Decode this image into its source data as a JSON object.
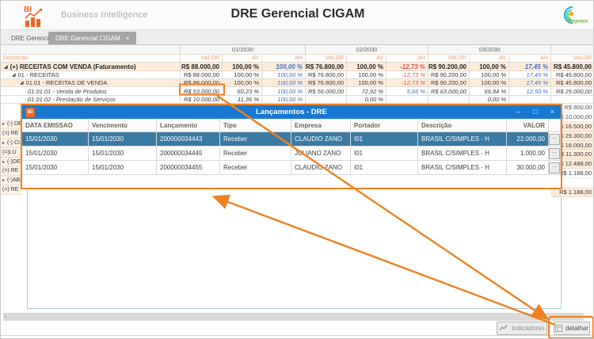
{
  "header": {
    "logo_text": "BI",
    "app_label": "Business Intelligence",
    "title": "DRE Gerencial CIGAM",
    "brand_text": "Empresa"
  },
  "tabs": [
    {
      "label": "DRE Gerencial",
      "active": false
    },
    {
      "label": "DRE Gerencial CIGAM",
      "active": true,
      "close_glyph": "×"
    }
  ],
  "grid": {
    "description_header": "Descricao",
    "month_groups": [
      {
        "label": "01/2030",
        "span": 3
      },
      {
        "label": "02/2030",
        "span": 3
      },
      {
        "label": "03/2030",
        "span": 3
      },
      {
        "label": "",
        "span": 1
      }
    ],
    "value_headers": [
      "VALOR",
      "AV",
      "AH",
      "VALOR",
      "AV",
      "AH",
      "VALOR",
      "AV",
      "AH",
      "VALOR"
    ],
    "rows": [
      {
        "desc": "(+) RECEITAS COM VENDA (Faturamento)",
        "level": 0,
        "arrow": true,
        "peach": true,
        "bold": true,
        "italic": false,
        "cells": [
          [
            "R$ 88.000,00",
            ""
          ],
          [
            "100,00 %",
            ""
          ],
          [
            "100,00 %",
            "b"
          ],
          [
            "R$ 76.800,00",
            ""
          ],
          [
            "100,00 %",
            ""
          ],
          [
            "-12,73 %",
            "r"
          ],
          [
            "R$ 90.200,00",
            ""
          ],
          [
            "100,00 %",
            ""
          ],
          [
            "17,45 %",
            "b"
          ],
          [
            "R$ 45.800,00",
            ""
          ]
        ]
      },
      {
        "desc": "01 - RECEITAS",
        "level": 1,
        "arrow": true,
        "peach": false,
        "bold": false,
        "italic": false,
        "cells": [
          [
            "R$ 88.000,00",
            ""
          ],
          [
            "100,00 %",
            ""
          ],
          [
            "100,00 %",
            "b"
          ],
          [
            "R$ 76.800,00",
            ""
          ],
          [
            "100,00 %",
            ""
          ],
          [
            "-12,73 %",
            "r"
          ],
          [
            "R$ 90.200,00",
            ""
          ],
          [
            "100,00 %",
            ""
          ],
          [
            "17,45 %",
            "b"
          ],
          [
            "R$ 45.800,00",
            ""
          ]
        ]
      },
      {
        "desc": "01.01 - RECEITAS DE VENDA",
        "level": 2,
        "arrow": true,
        "peach": true,
        "bold": false,
        "italic": false,
        "cells": [
          [
            "R$ 88.000,00",
            ""
          ],
          [
            "100,00 %",
            ""
          ],
          [
            "100,00 %",
            "b"
          ],
          [
            "R$ 76.800,00",
            ""
          ],
          [
            "100,00 %",
            ""
          ],
          [
            "-12,73 %",
            "r"
          ],
          [
            "R$ 90.200,00",
            ""
          ],
          [
            "100,00 %",
            ""
          ],
          [
            "17,45 %",
            "b"
          ],
          [
            "R$ 45.800,00",
            ""
          ]
        ]
      },
      {
        "desc": "01.01.01 - Venda de Produtos",
        "level": 3,
        "arrow": false,
        "peach": false,
        "bold": false,
        "italic": true,
        "cells": [
          [
            "R$ 53.000,00",
            "hl"
          ],
          [
            "60,23 %",
            ""
          ],
          [
            "100,00 %",
            "b"
          ],
          [
            "R$ 56.000,00",
            ""
          ],
          [
            "72,92 %",
            ""
          ],
          [
            "5,66 %",
            "b"
          ],
          [
            "R$ 63.000,00",
            ""
          ],
          [
            "69,84 %",
            ""
          ],
          [
            "12,50 %",
            "b"
          ],
          [
            "R$ 25.000,00",
            ""
          ]
        ]
      },
      {
        "desc": "01.01.02 - Prestação de Serviços",
        "level": 3,
        "arrow": false,
        "peach": false,
        "bold": false,
        "italic": true,
        "cells": [
          [
            "R$ 10.000,00",
            ""
          ],
          [
            "11,36 %",
            ""
          ],
          [
            "100,00 %",
            "b"
          ],
          [
            "",
            ""
          ],
          [
            "0,00 %",
            ""
          ],
          [
            "",
            ""
          ],
          [
            "",
            ""
          ],
          [
            "0,00 %",
            ""
          ],
          [
            "",
            ""
          ],
          [
            "",
            ""
          ]
        ]
      }
    ],
    "left_sliver_rows": [
      {
        "text": "(-) DE",
        "arrow": true
      },
      {
        "text": "(=) RE",
        "arrow": false
      },
      {
        "text": "(-) CU",
        "arrow": true
      },
      {
        "text": "(=)LU",
        "arrow": false
      },
      {
        "text": "(-)DES",
        "arrow": true
      },
      {
        "text": "(=) RE",
        "arrow": false
      },
      {
        "text": "(-)ABA",
        "arrow": true
      },
      {
        "text": "(=) RE",
        "arrow": false
      }
    ],
    "right_sliver_values": [
      {
        "text": "R$ 800,00",
        "italic": true,
        "peach": false
      },
      {
        "text": "R$ 10.000,00",
        "italic": true,
        "peach": false
      },
      {
        "text": "R$ 16.500,00",
        "italic": false,
        "peach": true
      },
      {
        "text": "R$ 29.300,00",
        "italic": false,
        "peach": true
      },
      {
        "text": "R$ 18.000,00",
        "italic": false,
        "peach": true
      },
      {
        "text": "R$ 11.300,00",
        "italic": false,
        "peach": true
      },
      {
        "text": "R$ 12.488,00",
        "italic": false,
        "peach": true
      },
      {
        "text": "R$ 1.188,00",
        "italic": false,
        "peach": false
      },
      {
        "text": "",
        "italic": false,
        "peach": false
      },
      {
        "text": "R$ 1.188,00",
        "italic": false,
        "peach": true
      }
    ]
  },
  "dialog": {
    "badge_text": "BI",
    "title": "Lançamentos - DRE",
    "window_buttons": {
      "minimize": "–",
      "maximize": "□",
      "close": "×"
    },
    "columns": [
      "DATA EMISSAO",
      "Vencimento",
      "Lançamento",
      "Tipo",
      "Empresa",
      "Portador",
      "Descrição",
      "VALOR"
    ],
    "row_menu_glyph": "...",
    "rows": [
      {
        "selected": true,
        "cells": [
          "15/01/2030",
          "15/01/2030",
          "200000034443",
          "Receber",
          "CLAUDIO ZANO",
          "I01",
          "BRASIL C/SIMPLES - H",
          "22.000,00"
        ]
      },
      {
        "selected": false,
        "cells": [
          "15/01/2030",
          "15/01/2030",
          "200000034445",
          "Receber",
          "JULIANO ZANO",
          "I01",
          "BRASIL C/SIMPLES - H",
          "1.000,00"
        ]
      },
      {
        "selected": false,
        "cells": [
          "15/01/2030",
          "15/01/2030",
          "200000034455",
          "Receber",
          "CLAUDIO ZANO",
          "I01",
          "BRASIL C/SIMPLES - H",
          "30.000,00"
        ]
      }
    ]
  },
  "footer": {
    "indicadores_label": "Indicadores",
    "detalhar_label": "detalhar",
    "scroll_left_glyph": "‹",
    "scroll_right_glyph": "›"
  },
  "colors": {
    "annotation_orange": "#F08121",
    "logo_orange": "#F26522",
    "dialog_titlebar_blue": "#1878CF",
    "selected_row_blue": "#3A7AA2",
    "row_peach": "#FDEBDA",
    "grid_header_salmon": "#EE9C6A",
    "ah_positive_blue": "#3F6FBF",
    "ah_negative_red": "#D9534F",
    "brand_cyan": "#2BB3D4",
    "brand_green": "#6FB53C"
  }
}
